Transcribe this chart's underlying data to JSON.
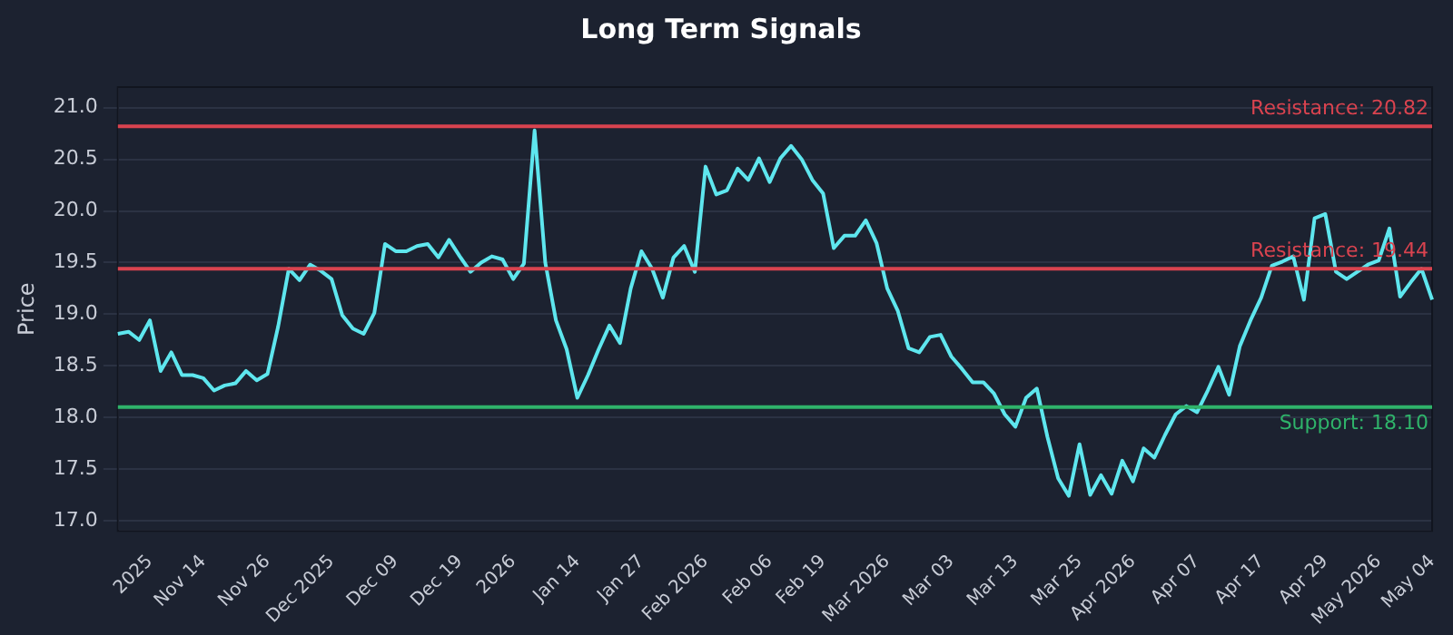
{
  "chart_data": {
    "type": "line",
    "title": "Long Term Signals",
    "ylabel": "Price",
    "categories": [
      null,
      null,
      null,
      "2025",
      null,
      null,
      null,
      null,
      "Nov 14",
      null,
      null,
      null,
      null,
      null,
      "Nov 26",
      null,
      null,
      null,
      null,
      null,
      "Dec 2025",
      null,
      null,
      null,
      null,
      null,
      "Dec 09",
      null,
      null,
      null,
      null,
      null,
      "Dec 19",
      null,
      null,
      null,
      null,
      "2026",
      null,
      null,
      null,
      null,
      null,
      "Jan 14",
      null,
      null,
      null,
      null,
      null,
      "Jan 27",
      null,
      null,
      null,
      null,
      null,
      "Feb 2026",
      null,
      null,
      null,
      null,
      null,
      "Feb 06",
      null,
      null,
      null,
      null,
      "Feb 19",
      null,
      null,
      null,
      null,
      null,
      "Mar 2026",
      null,
      null,
      null,
      null,
      null,
      "Mar 03",
      null,
      null,
      null,
      null,
      null,
      "Mar 13",
      null,
      null,
      null,
      null,
      null,
      "Mar 25",
      null,
      null,
      null,
      null,
      "Apr 2026",
      null,
      null,
      null,
      null,
      null,
      "Apr 07",
      null,
      null,
      null,
      null,
      null,
      "Apr 17",
      null,
      null,
      null,
      null,
      null,
      "Apr 29",
      null,
      null,
      null,
      null,
      "May 2026",
      null,
      null,
      null,
      null,
      "May 04"
    ],
    "series": [
      {
        "color": "#5ee6ee",
        "values": [
          18.81,
          18.83,
          18.75,
          18.94,
          18.45,
          18.63,
          18.41,
          18.41,
          18.38,
          18.26,
          18.31,
          18.33,
          18.45,
          18.36,
          18.42,
          18.88,
          19.44,
          19.33,
          19.48,
          19.42,
          19.34,
          18.99,
          18.86,
          18.81,
          19.01,
          19.68,
          19.61,
          19.61,
          19.66,
          19.68,
          19.55,
          19.72,
          19.56,
          19.41,
          19.5,
          19.56,
          19.53,
          19.34,
          19.49,
          20.78,
          19.5,
          18.94,
          18.66,
          18.19,
          18.41,
          18.66,
          18.89,
          18.72,
          19.25,
          19.61,
          19.44,
          19.16,
          19.55,
          19.66,
          19.41,
          20.43,
          20.16,
          20.2,
          20.41,
          20.3,
          20.51,
          20.28,
          20.51,
          20.63,
          20.5,
          20.3,
          20.17,
          19.64,
          19.76,
          19.76,
          19.91,
          19.69,
          19.25,
          19.03,
          18.67,
          18.63,
          18.78,
          18.8,
          18.59,
          18.47,
          18.34,
          18.34,
          18.23,
          18.03,
          17.91,
          18.19,
          18.28,
          17.81,
          17.41,
          17.24,
          17.74,
          17.25,
          17.44,
          17.26,
          17.58,
          17.38,
          17.7,
          17.61,
          17.83,
          18.03,
          18.11,
          18.05,
          18.26,
          18.49,
          18.22,
          18.69,
          18.94,
          19.16,
          19.47,
          19.51,
          19.56,
          19.14,
          19.93,
          19.97,
          19.41,
          19.34,
          19.41,
          19.48,
          19.52,
          19.83,
          19.17,
          19.31,
          19.44,
          19.14
        ]
      }
    ],
    "ylim": [
      16.9,
      21.2
    ],
    "yticks": [
      {
        "value": 17,
        "label": "17.0"
      },
      {
        "value": 17.5,
        "label": "17.5"
      },
      {
        "value": 18,
        "label": "18.0"
      },
      {
        "value": 18.5,
        "label": "18.5"
      },
      {
        "value": 19,
        "label": "19.0"
      },
      {
        "value": 19.5,
        "label": "19.5"
      },
      {
        "value": 20,
        "label": "20.0"
      },
      {
        "value": 20.5,
        "label": "20.5"
      },
      {
        "value": 21,
        "label": "21.0"
      }
    ],
    "ref_lines": [
      {
        "axis": "y",
        "value": 20.82,
        "label": "Resistance: 20.82",
        "color": "#d9434f"
      },
      {
        "axis": "y",
        "value": 19.44,
        "label": "Resistance: 19.44",
        "color": "#d9434f"
      },
      {
        "axis": "y",
        "value": 18.1,
        "label": "Support: 18.10",
        "color": "#2fb36a"
      }
    ],
    "grid": "y",
    "legend": false,
    "marker": "none",
    "line_style": "solid"
  }
}
